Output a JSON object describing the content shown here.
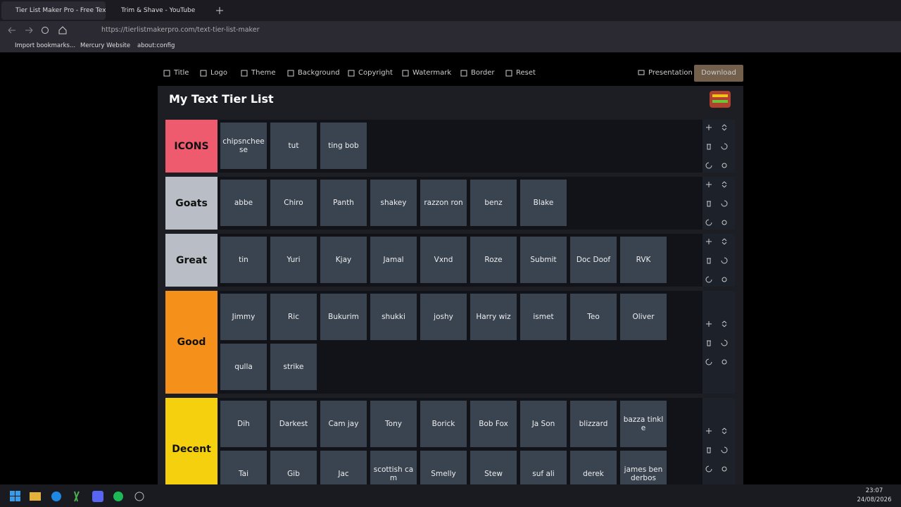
{
  "browser": {
    "tabs": [
      "Tier List Maker Pro - Free Text T",
      "Trim & Shave - YouTube"
    ],
    "url": "https://tierlistmakerpro.com/text-tier-list-maker",
    "bookmarks": [
      "Import bookmarks...",
      "Mercury Website",
      "about:config"
    ]
  },
  "toolbar": {
    "left": [
      "Title",
      "Logo",
      "Theme",
      "Background",
      "Copyright",
      "Watermark",
      "Border",
      "Reset"
    ],
    "presentation": "Presentation",
    "download": "Download"
  },
  "list_title": "My Text Tier List",
  "tiers": [
    {
      "label": "ICONS",
      "color": "#ee5a6e",
      "items": [
        "chipsncheese",
        "tut",
        "ting bob"
      ]
    },
    {
      "label": "Goats",
      "color": "#b8bdc6",
      "items": [
        "abbe",
        "Chiro",
        "Panth",
        "shakey",
        "razzon ron",
        "benz",
        "Blake"
      ]
    },
    {
      "label": "Great",
      "color": "#b8bdc6",
      "items": [
        "tin",
        "Yuri",
        "Kjay",
        "Jamal",
        "Vxnd",
        "Roze",
        "Submit",
        "Doc Doof",
        "RVK"
      ]
    },
    {
      "label": "Good",
      "color": "#f5901a",
      "items": [
        "Jimmy",
        "Ric",
        "Bukurim",
        "shukki",
        "joshy",
        "Harry wiz",
        "ismet",
        "Teo",
        "Oliver",
        "qulla",
        "strike"
      ]
    },
    {
      "label": "Decent",
      "color": "#f5d00f",
      "items": [
        "Dih",
        "Darkest",
        "Cam jay",
        "Tony",
        "Borick",
        "Bob Fox",
        "Ja Son",
        "blizzard",
        "bazza tinkle",
        "Tai",
        "Gib",
        "Jac",
        "scottish cam",
        "Smelly",
        "Stew",
        "suf ali",
        "derek",
        "james benderbos"
      ]
    }
  ],
  "taskbar": {
    "time": "23:07",
    "date": "24/08/2026"
  }
}
